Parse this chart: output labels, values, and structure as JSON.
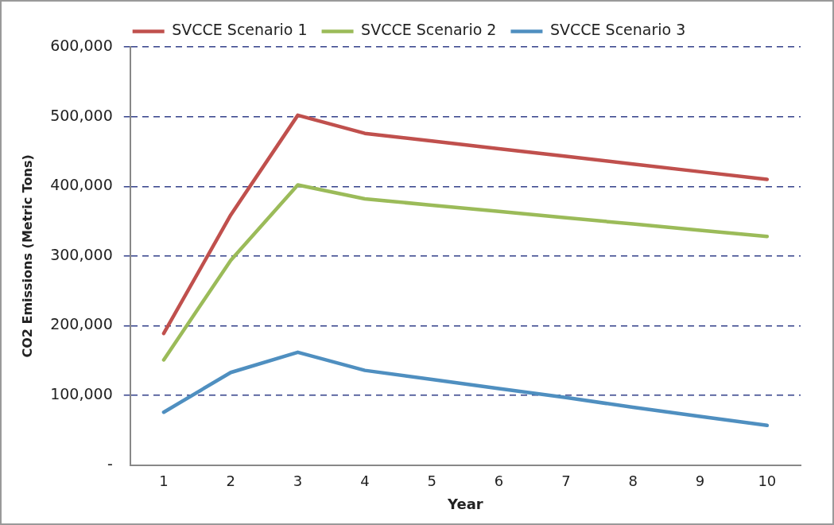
{
  "chart_data": {
    "type": "line",
    "xlabel": "Year",
    "ylabel": "CO2 Emissions (Metric Tons)",
    "categories": [
      "1",
      "2",
      "3",
      "4",
      "5",
      "6",
      "7",
      "8",
      "9",
      "10"
    ],
    "series": [
      {
        "name": "SVCCE Scenario 1",
        "color": "#c0504d",
        "values": [
          189000,
          359000,
          502000,
          476000,
          465000,
          454000,
          443000,
          432000,
          421000,
          410000
        ]
      },
      {
        "name": "SVCCE Scenario 2",
        "color": "#9bbb59",
        "values": [
          151000,
          294000,
          402000,
          382000,
          373000,
          364000,
          355000,
          346000,
          337000,
          328000
        ]
      },
      {
        "name": "SVCCE Scenario 3",
        "color": "#4f8fc0",
        "values": [
          76000,
          133000,
          162000,
          136000,
          123000,
          110000,
          97000,
          83000,
          70000,
          57000
        ]
      }
    ],
    "ylim": [
      0,
      600000
    ],
    "yticks": [
      {
        "value": 0,
        "label": "-"
      },
      {
        "value": 100000,
        "label": "100,000"
      },
      {
        "value": 200000,
        "label": "200,000"
      },
      {
        "value": 300000,
        "label": "300,000"
      },
      {
        "value": 400000,
        "label": "400,000"
      },
      {
        "value": 500000,
        "label": "500,000"
      },
      {
        "value": 600000,
        "label": "600,000"
      }
    ],
    "grid": "y",
    "legend": "top",
    "marker": "none",
    "line_style": "solid"
  }
}
